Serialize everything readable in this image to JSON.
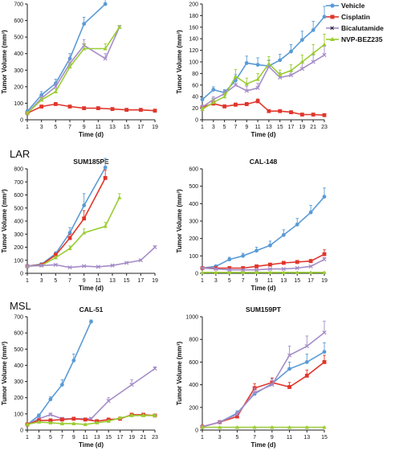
{
  "colors": {
    "Vehicle": "#5b9bd5",
    "Cisplatin": "#e0362c",
    "Bicalutamide": "#a58cc8",
    "NVP-BEZ235": "#9acd32"
  },
  "legend": [
    "Vehicle",
    "Cisplatin",
    "Bicalutamide",
    "NVP-BEZ235"
  ],
  "groups": [
    "LAR",
    "MSL"
  ],
  "chart_data": [
    {
      "type": "line",
      "title": "",
      "xlabel": "Time (d)",
      "ylabel": "Tumor Volume (mm³)",
      "xticks": [
        1,
        3,
        5,
        7,
        9,
        11,
        13,
        15,
        17,
        19
      ],
      "yticks": [
        0,
        100,
        200,
        300,
        400,
        500,
        600,
        700
      ],
      "ylim": [
        0,
        700
      ],
      "xlim": [
        1,
        19
      ],
      "series": [
        {
          "name": "Vehicle",
          "x": [
            1,
            3,
            5,
            7,
            9,
            12
          ],
          "y": [
            50,
            150,
            220,
            370,
            580,
            700
          ],
          "err": [
            10,
            20,
            25,
            30,
            40,
            50
          ]
        },
        {
          "name": "Cisplatin",
          "x": [
            1,
            3,
            5,
            7,
            9,
            11,
            13,
            15,
            17,
            19
          ],
          "y": [
            40,
            80,
            95,
            80,
            70,
            70,
            65,
            60,
            60,
            55
          ],
          "err": [
            5,
            8,
            8,
            6,
            5,
            5,
            5,
            4,
            4,
            4
          ]
        },
        {
          "name": "Bicalutamide",
          "x": [
            1,
            3,
            5,
            7,
            9,
            12,
            14
          ],
          "y": [
            40,
            130,
            200,
            340,
            450,
            370,
            560
          ],
          "err": [
            8,
            15,
            20,
            25,
            35,
            30,
            10
          ]
        },
        {
          "name": "NVP-BEZ235",
          "x": [
            1,
            3,
            5,
            7,
            9,
            12,
            14
          ],
          "y": [
            40,
            120,
            170,
            320,
            430,
            430,
            560
          ],
          "err": [
            8,
            12,
            18,
            20,
            30,
            30,
            10
          ]
        }
      ]
    },
    {
      "type": "line",
      "title": "",
      "xlabel": "Time (d)",
      "ylabel": "Tumor Volume (mm³)",
      "xticks": [
        1,
        3,
        5,
        7,
        9,
        11,
        13,
        15,
        17,
        19,
        21,
        23
      ],
      "yticks": [
        0,
        20,
        40,
        60,
        80,
        100,
        120,
        140,
        160,
        180,
        200
      ],
      "ylim": [
        0,
        200
      ],
      "xlim": [
        1,
        23
      ],
      "series": [
        {
          "name": "Vehicle",
          "x": [
            1,
            3,
            5,
            7,
            9,
            11,
            13,
            15,
            17,
            19,
            21,
            23
          ],
          "y": [
            35,
            52,
            47,
            68,
            98,
            95,
            93,
            103,
            118,
            138,
            155,
            178
          ],
          "err": [
            3,
            5,
            5,
            10,
            12,
            12,
            10,
            10,
            12,
            15,
            15,
            18
          ]
        },
        {
          "name": "Cisplatin",
          "x": [
            1,
            3,
            5,
            7,
            9,
            11,
            13,
            15,
            17,
            19,
            21,
            23
          ],
          "y": [
            22,
            28,
            23,
            26,
            27,
            32,
            15,
            15,
            13,
            9,
            9,
            8
          ],
          "err": [
            3,
            4,
            3,
            3,
            3,
            4,
            2,
            2,
            2,
            2,
            2,
            1
          ]
        },
        {
          "name": "Bicalutamide",
          "x": [
            1,
            3,
            5,
            7,
            9,
            11,
            13,
            15,
            17,
            19,
            21,
            23
          ],
          "y": [
            22,
            35,
            45,
            60,
            50,
            55,
            92,
            73,
            77,
            88,
            100,
            112
          ],
          "err": [
            3,
            5,
            6,
            10,
            8,
            8,
            10,
            8,
            8,
            12,
            12,
            15
          ]
        },
        {
          "name": "NVP-BEZ235",
          "x": [
            1,
            3,
            5,
            7,
            9,
            11,
            13,
            15,
            17,
            19,
            21,
            23
          ],
          "y": [
            18,
            30,
            40,
            75,
            62,
            70,
            97,
            78,
            85,
            100,
            115,
            130
          ],
          "err": [
            3,
            5,
            6,
            12,
            10,
            10,
            12,
            8,
            10,
            12,
            15,
            18
          ]
        }
      ]
    },
    {
      "type": "line",
      "title": "SUM185PE",
      "xlabel": "Time (d)",
      "ylabel": "Tumor Volume (mm³)",
      "xticks": [
        1,
        3,
        5,
        7,
        9,
        11,
        13,
        15,
        17,
        19
      ],
      "yticks": [
        0,
        100,
        200,
        300,
        400,
        500,
        600,
        700,
        800
      ],
      "ylim": [
        0,
        800
      ],
      "xlim": [
        1,
        19
      ],
      "series": [
        {
          "name": "Vehicle",
          "x": [
            1,
            3,
            5,
            7,
            9,
            12
          ],
          "y": [
            55,
            70,
            150,
            310,
            520,
            810
          ],
          "err": [
            5,
            8,
            15,
            40,
            90,
            70
          ]
        },
        {
          "name": "Cisplatin",
          "x": [
            1,
            3,
            5,
            7,
            9,
            12
          ],
          "y": [
            55,
            65,
            140,
            270,
            420,
            730
          ],
          "err": [
            5,
            8,
            15,
            30,
            60,
            60
          ]
        },
        {
          "name": "NVP-BEZ235",
          "x": [
            1,
            3,
            5,
            7,
            9,
            12,
            14
          ],
          "y": [
            55,
            60,
            120,
            190,
            310,
            360,
            580
          ],
          "err": [
            5,
            6,
            12,
            20,
            30,
            30,
            30
          ]
        },
        {
          "name": "Bicalutamide",
          "x": [
            1,
            3,
            5,
            7,
            9,
            11,
            13,
            15,
            17,
            19
          ],
          "y": [
            55,
            60,
            65,
            45,
            55,
            50,
            60,
            80,
            100,
            200
          ],
          "err": [
            5,
            5,
            6,
            5,
            5,
            5,
            6,
            6,
            8,
            10
          ]
        }
      ]
    },
    {
      "type": "line",
      "title": "CAL-148",
      "xlabel": "Time (d)",
      "ylabel": "Tumor Volume (mm³)",
      "xticks": [
        1,
        3,
        5,
        7,
        9,
        11,
        13,
        15,
        17,
        19
      ],
      "yticks": [
        0,
        100,
        200,
        300,
        400,
        500,
        600
      ],
      "ylim": [
        0,
        600
      ],
      "xlim": [
        1,
        19
      ],
      "series": [
        {
          "name": "Vehicle",
          "x": [
            1,
            3,
            5,
            7,
            9,
            11,
            13,
            15,
            17,
            19
          ],
          "y": [
            30,
            40,
            80,
            100,
            130,
            160,
            220,
            280,
            350,
            440
          ],
          "err": [
            5,
            8,
            12,
            15,
            20,
            25,
            30,
            35,
            40,
            50
          ]
        },
        {
          "name": "Cisplatin",
          "x": [
            1,
            3,
            5,
            7,
            9,
            11,
            13,
            15,
            17,
            19
          ],
          "y": [
            30,
            30,
            30,
            30,
            40,
            50,
            60,
            65,
            70,
            110
          ],
          "err": [
            3,
            3,
            3,
            4,
            5,
            6,
            8,
            8,
            10,
            25
          ]
        },
        {
          "name": "Bicalutamide",
          "x": [
            1,
            3,
            5,
            7,
            9,
            11,
            13,
            15,
            17,
            19
          ],
          "y": [
            30,
            25,
            20,
            20,
            20,
            25,
            25,
            30,
            40,
            80
          ],
          "err": [
            3,
            3,
            3,
            3,
            3,
            3,
            3,
            4,
            5,
            10
          ]
        },
        {
          "name": "NVP-BEZ235",
          "x": [
            1,
            3,
            5,
            7,
            9,
            11,
            13,
            15,
            17,
            19
          ],
          "y": [
            5,
            5,
            5,
            5,
            5,
            5,
            5,
            5,
            5,
            5
          ],
          "err": [
            1,
            1,
            1,
            1,
            1,
            1,
            1,
            1,
            1,
            1
          ]
        }
      ]
    },
    {
      "type": "line",
      "title": "CAL-51",
      "xlabel": "Time (d)",
      "ylabel": "Tumor Volume (mm³)",
      "xticks": [
        1,
        3,
        5,
        7,
        9,
        11,
        13,
        15,
        17,
        19,
        21,
        23
      ],
      "yticks": [
        0,
        100,
        200,
        300,
        400,
        500,
        600,
        700
      ],
      "ylim": [
        0,
        700
      ],
      "xlim": [
        1,
        23
      ],
      "series": [
        {
          "name": "Vehicle",
          "x": [
            1,
            3,
            5,
            7,
            9,
            12
          ],
          "y": [
            35,
            90,
            190,
            280,
            430,
            670
          ],
          "err": [
            5,
            10,
            15,
            30,
            40,
            10
          ]
        },
        {
          "name": "Bicalutamide",
          "x": [
            1,
            3,
            5,
            7,
            9,
            12,
            15,
            19,
            23
          ],
          "y": [
            35,
            70,
            95,
            70,
            70,
            70,
            180,
            280,
            380
          ],
          "err": [
            5,
            8,
            10,
            8,
            8,
            8,
            20,
            30,
            10
          ]
        },
        {
          "name": "Cisplatin",
          "x": [
            1,
            3,
            5,
            7,
            9,
            11,
            13,
            15,
            17,
            19,
            21,
            23
          ],
          "y": [
            35,
            60,
            60,
            65,
            70,
            65,
            55,
            65,
            70,
            95,
            95,
            90
          ],
          "err": [
            5,
            6,
            6,
            6,
            6,
            6,
            6,
            6,
            6,
            8,
            8,
            8
          ]
        },
        {
          "name": "NVP-BEZ235",
          "x": [
            1,
            3,
            5,
            7,
            9,
            11,
            13,
            15,
            17,
            19,
            21,
            23
          ],
          "y": [
            35,
            50,
            45,
            40,
            40,
            35,
            45,
            55,
            75,
            90,
            90,
            90
          ],
          "err": [
            5,
            5,
            5,
            5,
            5,
            5,
            5,
            6,
            6,
            8,
            8,
            8
          ]
        }
      ]
    },
    {
      "type": "line",
      "title": "SUM159PT",
      "xlabel": "Time (d)",
      "ylabel": "Tumor Volume (mm³)",
      "xticks": [
        1,
        3,
        5,
        7,
        9,
        11,
        13,
        15
      ],
      "yticks": [
        0,
        200,
        400,
        600,
        800,
        1000
      ],
      "ylim": [
        0,
        1000
      ],
      "xlim": [
        1,
        15
      ],
      "series": [
        {
          "name": "Vehicle",
          "x": [
            1,
            3,
            5,
            7,
            9,
            11,
            13,
            15
          ],
          "y": [
            30,
            70,
            150,
            320,
            410,
            540,
            600,
            690
          ],
          "err": [
            5,
            10,
            20,
            40,
            50,
            60,
            70,
            80
          ]
        },
        {
          "name": "Cisplatin",
          "x": [
            1,
            3,
            5,
            7,
            9,
            11,
            13,
            15
          ],
          "y": [
            30,
            70,
            120,
            370,
            420,
            380,
            480,
            600
          ],
          "err": [
            5,
            10,
            20,
            40,
            40,
            40,
            50,
            60
          ]
        },
        {
          "name": "Bicalutamide",
          "x": [
            1,
            3,
            5,
            7,
            9,
            11,
            13,
            15
          ],
          "y": [
            30,
            70,
            140,
            330,
            400,
            660,
            740,
            860
          ],
          "err": [
            5,
            10,
            20,
            40,
            50,
            80,
            90,
            100
          ]
        },
        {
          "name": "NVP-BEZ235",
          "x": [
            1,
            3,
            5,
            7,
            9,
            11,
            13,
            15
          ],
          "y": [
            25,
            25,
            25,
            25,
            25,
            25,
            25,
            25
          ],
          "err": [
            3,
            3,
            3,
            3,
            3,
            3,
            3,
            3
          ]
        }
      ]
    }
  ]
}
